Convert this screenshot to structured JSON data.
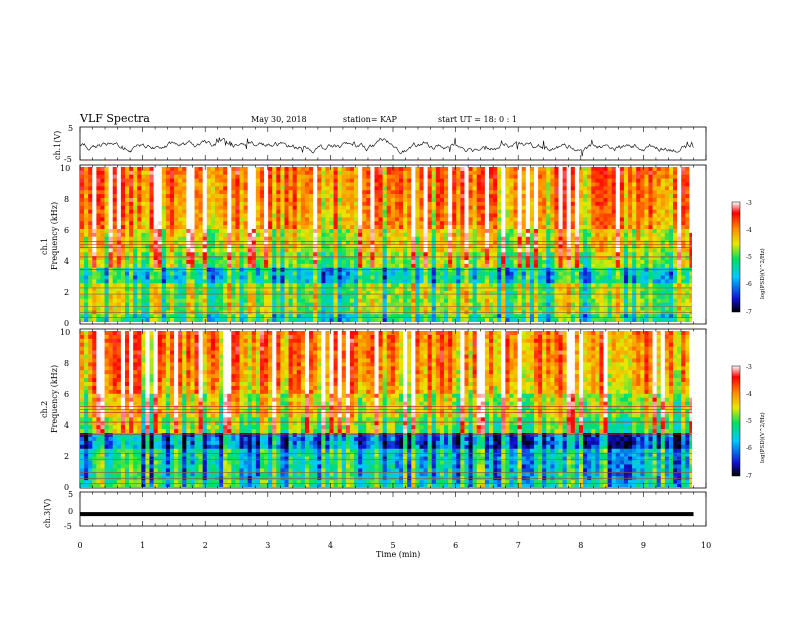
{
  "header": {
    "title": "VLF Spectra",
    "date": "May 30, 2018",
    "station": "station= KAP",
    "start": "start  UT  =   18: 0   : 1"
  },
  "chart_data": {
    "type": "heatmap",
    "x_label": "Time  (min)",
    "xlim": [
      0,
      10
    ],
    "x_ticks": [
      "0",
      "1",
      "2",
      "3",
      "4",
      "5",
      "6",
      "7",
      "8",
      "9",
      "10"
    ],
    "panels": [
      {
        "name": "ch.1(V)",
        "type": "line",
        "ylabel": "ch.1(V)",
        "ylim": [
          -5,
          5
        ],
        "y_ticks": [
          "5",
          "-5"
        ],
        "data_end_min": 9.8,
        "description_values": "noisy waveform centred near -1 V, amplitude about ±1.5 V"
      },
      {
        "name": "ch.1 spectrogram",
        "type": "heatmap",
        "ylabel_top": "ch.1",
        "ylabel": "Frequency  (kHz)",
        "ylim": [
          0,
          10
        ],
        "y_ticks": [
          "0",
          "2",
          "4",
          "6",
          "8",
          "10"
        ],
        "colorbar": {
          "label": "log(PSD)(V^2/Hz)",
          "range": [
            -7,
            -3
          ],
          "ticks": [
            "-3",
            "-4",
            "-5",
            "-6",
            "-7"
          ]
        },
        "data_end_min": 9.8
      },
      {
        "name": "ch.2 spectrogram",
        "type": "heatmap",
        "ylabel_top": "ch.2",
        "ylabel": "Frequency  (kHz)",
        "ylim": [
          0,
          10
        ],
        "y_ticks": [
          "0",
          "2",
          "4",
          "6",
          "8",
          "10"
        ],
        "colorbar": {
          "label": "log(PSD)(V^2/Hz)",
          "range": [
            -7,
            -3
          ],
          "ticks": [
            "-3",
            "-4",
            "-5",
            "-6",
            "-7"
          ]
        },
        "data_end_min": 9.8
      },
      {
        "name": "ch.3(V)",
        "type": "line",
        "ylabel": "ch.3(V)",
        "ylim": [
          -5,
          5
        ],
        "y_ticks": [
          "5",
          "0",
          "-5"
        ],
        "constant_value": -1.5,
        "data_end_min": 9.8
      }
    ]
  },
  "colors": {
    "psd_scale": [
      "#000000",
      "#1010d0",
      "#00c8ff",
      "#00e060",
      "#e8e800",
      "#ff8800",
      "#ff0000",
      "#ffffff"
    ]
  }
}
